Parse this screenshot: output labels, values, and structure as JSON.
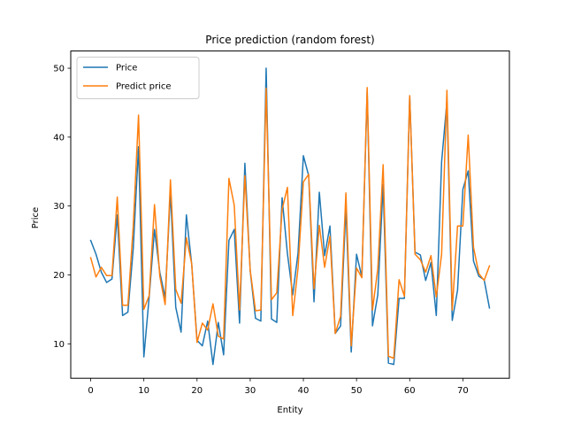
{
  "chart_data": {
    "type": "line",
    "title": "Price prediction (random forest)",
    "xlabel": "Entity",
    "ylabel": "Price",
    "xlim": [
      -3.75,
      78.75
    ],
    "ylim": [
      5.0,
      52.5
    ],
    "xticks": [
      0,
      10,
      20,
      30,
      40,
      50,
      60,
      70
    ],
    "yticks": [
      10,
      20,
      30,
      40,
      50
    ],
    "grid": false,
    "legend_position": "top-left",
    "x": [
      0,
      1,
      2,
      3,
      4,
      5,
      6,
      7,
      8,
      9,
      10,
      11,
      12,
      13,
      14,
      15,
      16,
      17,
      18,
      19,
      20,
      21,
      22,
      23,
      24,
      25,
      26,
      27,
      28,
      29,
      30,
      31,
      32,
      33,
      34,
      35,
      36,
      37,
      38,
      39,
      40,
      41,
      42,
      43,
      44,
      45,
      46,
      47,
      48,
      49,
      50,
      51,
      52,
      53,
      54,
      55,
      56,
      57,
      58,
      59,
      60,
      61,
      62,
      63,
      64,
      65,
      66,
      67,
      68,
      69,
      70,
      71,
      72,
      73,
      74,
      75
    ],
    "series": [
      {
        "name": "Price",
        "color": "#1f77b4",
        "values": [
          25.0,
          23.0,
          20.4,
          18.9,
          19.4,
          28.7,
          14.1,
          14.6,
          23.8,
          38.6,
          8.1,
          16.8,
          26.6,
          20.4,
          16.7,
          32.0,
          15.3,
          11.7,
          28.7,
          21.5,
          10.5,
          9.7,
          13.3,
          7.0,
          13.1,
          8.4,
          25.0,
          26.6,
          13.0,
          36.2,
          20.6,
          13.7,
          13.3,
          50.0,
          13.6,
          13.1,
          31.2,
          23.1,
          17.1,
          23.2,
          37.3,
          34.4,
          16.1,
          32.0,
          22.8,
          27.1,
          11.5,
          12.6,
          29.8,
          8.8,
          23.0,
          19.7,
          46.7,
          12.6,
          17.1,
          33.1,
          7.2,
          7.0,
          16.6,
          16.6,
          46.0,
          23.3,
          22.9,
          19.2,
          21.8,
          14.1,
          36.4,
          45.2,
          13.4,
          17.8,
          32.4,
          35.1,
          22.0,
          19.8,
          19.3,
          15.2
        ]
      },
      {
        "name": "Predict price",
        "color": "#ff7f0e",
        "values": [
          22.5,
          19.7,
          21.1,
          19.9,
          19.9,
          31.3,
          15.6,
          15.6,
          27.0,
          43.2,
          15.0,
          17.0,
          30.2,
          19.8,
          15.7,
          33.8,
          17.9,
          15.9,
          25.4,
          21.6,
          10.2,
          13.0,
          12.0,
          15.8,
          11.1,
          10.7,
          34.0,
          30.1,
          14.9,
          34.4,
          20.7,
          14.8,
          14.9,
          47.1,
          16.4,
          17.4,
          29.5,
          32.7,
          14.1,
          21.0,
          33.5,
          34.6,
          18.0,
          27.2,
          21.1,
          25.6,
          11.5,
          14.0,
          31.9,
          9.7,
          21.0,
          19.6,
          47.2,
          14.9,
          20.9,
          36.0,
          8.2,
          7.9,
          19.3,
          16.9,
          46.0,
          23.0,
          22.2,
          20.4,
          22.8,
          16.8,
          23.0,
          46.8,
          14.9,
          27.1,
          27.1,
          40.3,
          24.0,
          20.2,
          19.2,
          21.3
        ]
      }
    ]
  }
}
